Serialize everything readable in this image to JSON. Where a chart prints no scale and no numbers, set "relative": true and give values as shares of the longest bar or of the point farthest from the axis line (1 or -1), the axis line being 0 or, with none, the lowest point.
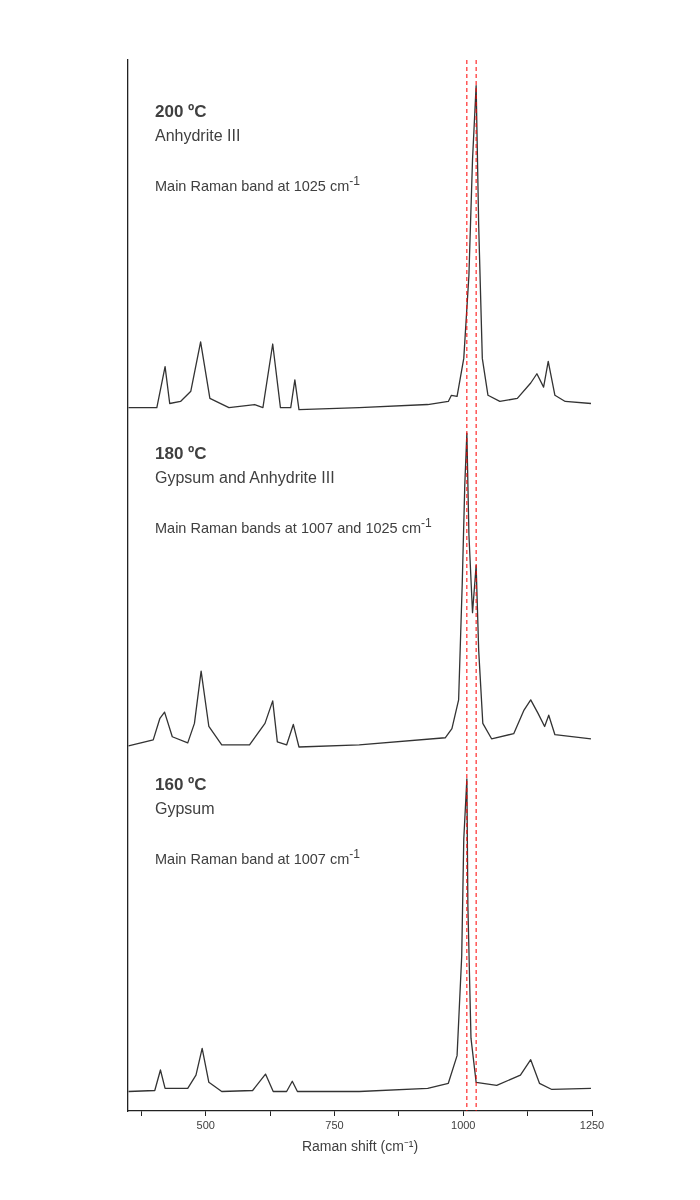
{
  "chart_data": {
    "type": "line",
    "relative": true,
    "xlabel": "Raman shift (cm⁻¹)",
    "xlim": [
      349,
      1250
    ],
    "xticks": [
      {
        "value": 375,
        "label": null
      },
      500,
      {
        "value": 625,
        "label": null
      },
      750,
      {
        "value": 875,
        "label": null
      },
      1000,
      {
        "value": 1125,
        "label": null
      },
      1250
    ],
    "series": [
      {
        "color": "#333333",
        "x": [
          350,
          405,
          421,
          430,
          451,
          471,
          490,
          508,
          545,
          595,
          611,
          630,
          645,
          665,
          673,
          681,
          798,
          931,
          971,
          977,
          988,
          1001,
          1011,
          1018,
          1025,
          1030,
          1037,
          1048,
          1071,
          1105,
          1131,
          1143,
          1156,
          1165,
          1178,
          1198,
          1248
        ],
        "values": [
          0.686,
          0.686,
          0.726,
          0.69,
          0.692,
          0.702,
          0.75,
          0.695,
          0.686,
          0.689,
          0.686,
          0.748,
          0.686,
          0.686,
          0.713,
          0.684,
          0.686,
          0.689,
          0.692,
          0.698,
          0.697,
          0.734,
          0.815,
          0.928,
          1.0,
          0.863,
          0.734,
          0.698,
          0.692,
          0.695,
          0.71,
          0.719,
          0.706,
          0.731,
          0.698,
          0.692,
          0.69
        ]
      },
      {
        "color": "#333333",
        "x": [
          350,
          398,
          411,
          420,
          435,
          465,
          478,
          491,
          506,
          531,
          585,
          615,
          630,
          639,
          657,
          670,
          681,
          798,
          965,
          978,
          991,
          998,
          1003,
          1007,
          1011,
          1018,
          1025,
          1030,
          1038,
          1055,
          1098,
          1118,
          1131,
          1145,
          1158,
          1166,
          1178,
          1248
        ],
        "values": [
          0.356,
          0.362,
          0.383,
          0.389,
          0.365,
          0.359,
          0.378,
          0.429,
          0.375,
          0.357,
          0.357,
          0.378,
          0.4,
          0.36,
          0.357,
          0.377,
          0.355,
          0.357,
          0.364,
          0.373,
          0.401,
          0.514,
          0.611,
          0.661,
          0.562,
          0.486,
          0.532,
          0.449,
          0.378,
          0.363,
          0.368,
          0.391,
          0.401,
          0.388,
          0.375,
          0.386,
          0.367,
          0.363
        ]
      },
      {
        "color": "#333333",
        "x": [
          350,
          401,
          412,
          421,
          465,
          481,
          493,
          506,
          531,
          591,
          616,
          631,
          657,
          668,
          678,
          798,
          931,
          971,
          988,
          997,
          1001,
          1007,
          1009,
          1015,
          1025,
          1065,
          1111,
          1131,
          1148,
          1172,
          1248
        ],
        "values": [
          0.019,
          0.02,
          0.04,
          0.022,
          0.022,
          0.035,
          0.061,
          0.028,
          0.019,
          0.02,
          0.036,
          0.019,
          0.019,
          0.029,
          0.019,
          0.019,
          0.022,
          0.027,
          0.054,
          0.151,
          0.265,
          0.324,
          0.2,
          0.071,
          0.028,
          0.025,
          0.035,
          0.05,
          0.027,
          0.021,
          0.022
        ]
      }
    ],
    "ref_lines": [
      {
        "axis": "x",
        "value": 1007,
        "color": "#ff0000",
        "line_style": "dashed"
      },
      {
        "axis": "x",
        "value": 1025,
        "color": "#ff0000",
        "line_style": "dashed"
      }
    ],
    "annotations": [
      "200 ºC",
      "Anhydrite III",
      "Main Raman band at 1025 cm$^{-1}$",
      "180 ºC",
      "Gypsum and Anhydrite III",
      "Main Raman bands at 1007 and 1025 cm$^{-1}$",
      "160 ºC",
      "Gypsum",
      "Main Raman band at 1007 cm$^{-1}$"
    ]
  }
}
